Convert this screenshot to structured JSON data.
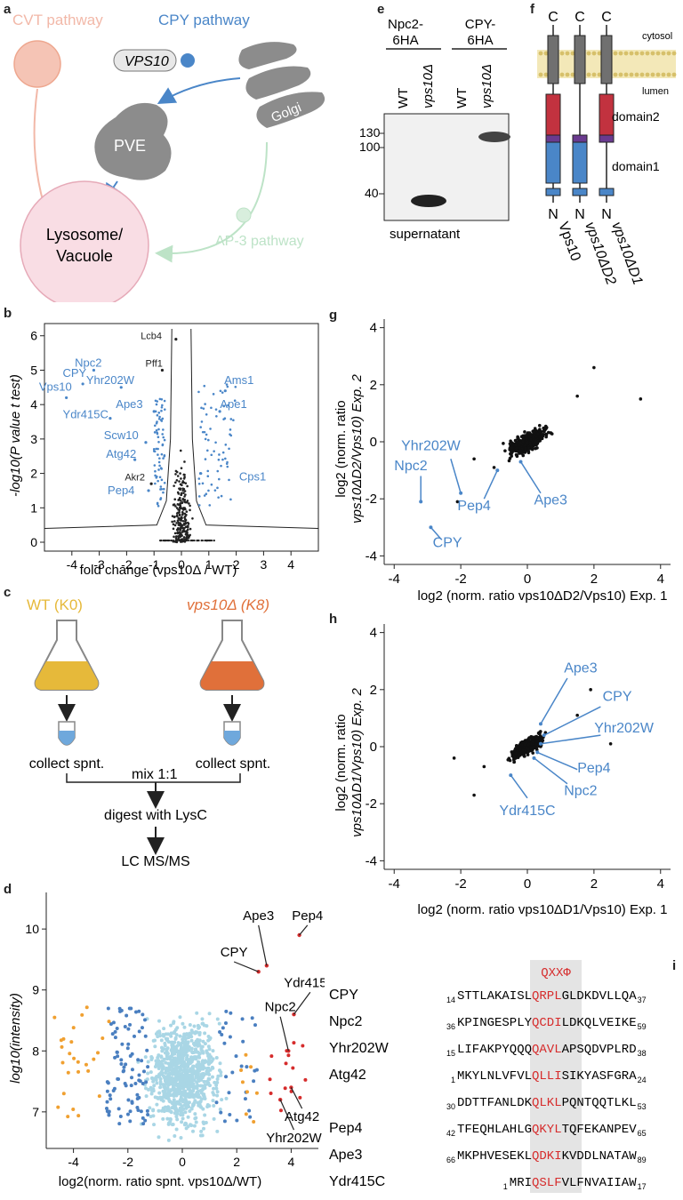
{
  "panel_labels": {
    "a": "a",
    "b": "b",
    "c": "c",
    "d": "d",
    "e": "e",
    "f": "f",
    "g": "g",
    "h": "h",
    "i": "i"
  },
  "panel_a": {
    "cvt_label": "CVT pathway",
    "cpy_label": "CPY pathway",
    "vps10_label": "VPS10",
    "golgi_label": "Golgi",
    "pve_label": "PVE",
    "ap3_label": "AP-3 pathway",
    "lysosome_label_1": "Lysosome/",
    "lysosome_label_2": "Vacuole",
    "colors": {
      "cvt": "#f2b8a8",
      "cpy": "#4a86c8",
      "ap3": "#bde3c7",
      "lysosome_fill": "#f9dde4",
      "lysosome_stroke": "#e6aab8",
      "organelle": "#8c8c8c"
    }
  },
  "panel_b": {
    "ylabel": "-log10(P value t test)",
    "xlabel": "fold change (vps10Δ / WT)",
    "chart_data": {
      "type": "scatter",
      "title": "",
      "xlim": [
        -5,
        5
      ],
      "ylim": [
        0,
        6.2
      ],
      "xticks": [
        "-4",
        "-3",
        "-2",
        "-1",
        "0",
        "1",
        "2",
        "3",
        "4"
      ],
      "yticks": [
        "0",
        "1",
        "2",
        "3",
        "4",
        "5",
        "6"
      ],
      "labeled_points": [
        {
          "name": "Lcb4",
          "x": -0.2,
          "y": 5.9,
          "color": "black"
        },
        {
          "name": "Npc2",
          "x": -3.2,
          "y": 5.0,
          "color": "blue"
        },
        {
          "name": "CPY",
          "x": -3.6,
          "y": 4.6,
          "color": "blue"
        },
        {
          "name": "Pff1",
          "x": -0.7,
          "y": 5.0,
          "color": "black"
        },
        {
          "name": "Yhr202W",
          "x": -2.2,
          "y": 4.5,
          "color": "blue"
        },
        {
          "name": "Vps10",
          "x": -4.2,
          "y": 4.2,
          "color": "blue"
        },
        {
          "name": "Ams1",
          "x": 1.6,
          "y": 4.4,
          "color": "blue"
        },
        {
          "name": "Ape3",
          "x": -1.0,
          "y": 3.8,
          "color": "blue"
        },
        {
          "name": "Ape1",
          "x": 1.4,
          "y": 3.8,
          "color": "blue"
        },
        {
          "name": "Ydr415C",
          "x": -2.6,
          "y": 3.6,
          "color": "blue"
        },
        {
          "name": "Scw10",
          "x": -1.3,
          "y": 2.9,
          "color": "blue"
        },
        {
          "name": "Atg42",
          "x": -1.7,
          "y": 2.4,
          "color": "blue"
        },
        {
          "name": "Cps1",
          "x": 0.7,
          "y": 2.0,
          "color": "blue"
        },
        {
          "name": "Akr2",
          "x": -1.1,
          "y": 1.7,
          "color": "black"
        },
        {
          "name": "Pep4",
          "x": -1.2,
          "y": 1.5,
          "color": "blue"
        }
      ]
    }
  },
  "panel_c": {
    "wt_label": "WT (K0)",
    "mut_label": "vps10Δ (K8)",
    "collect_left": "collect spnt.",
    "collect_right": "collect spnt.",
    "mix_label": "mix 1:1",
    "digest_label": "digest with LysC",
    "lcms_label": "LC MS/MS",
    "colors": {
      "wt": "#e6b93a",
      "mut": "#e0703a",
      "tube": "#6fa8dc"
    }
  },
  "panel_d": {
    "ylabel": "log10(intensity)",
    "xlabel": "log2(norm. ratio spnt. vps10Δ/WT)",
    "chart_data": {
      "type": "scatter",
      "xlim": [
        -5,
        5
      ],
      "ylim": [
        6.4,
        10.6
      ],
      "xticks": [
        "-4",
        "-2",
        "0",
        "2",
        "4"
      ],
      "yticks": [
        "7",
        "8",
        "9",
        "10"
      ],
      "labeled_points": [
        {
          "name": "Ape3",
          "x": 3.1,
          "y": 9.4
        },
        {
          "name": "Pep4",
          "x": 4.3,
          "y": 9.9
        },
        {
          "name": "CPY",
          "x": 2.8,
          "y": 9.3
        },
        {
          "name": "Ydr415C",
          "x": 4.1,
          "y": 8.6
        },
        {
          "name": "Npc2",
          "x": 3.9,
          "y": 8.0
        },
        {
          "name": "Atg42",
          "x": 4.0,
          "y": 7.4
        },
        {
          "name": "Yhr202W",
          "x": 3.6,
          "y": 7.2
        }
      ],
      "series_colors": {
        "bulk": "#a9d6e5",
        "moderate": "#4a7fc0",
        "outlier": "#f0a030",
        "hit": "#d62c2c"
      }
    }
  },
  "panel_e": {
    "header_left_1": "Npc2-",
    "header_left_2": "6HA",
    "header_right_1": "CPY-",
    "header_right_2": "6HA",
    "lanes": [
      "WT",
      "vps10Δ",
      "WT",
      "vps10Δ"
    ],
    "markers": [
      "130",
      "100",
      "40"
    ],
    "footer": "supernatant"
  },
  "panel_f": {
    "c_labels": [
      "C",
      "C",
      "C"
    ],
    "n_labels": [
      "N",
      "N",
      "N"
    ],
    "cytosol": "cytosol",
    "lumen": "lumen",
    "domain2": "domain2",
    "domain1": "domain1",
    "constructs": [
      "Vps10",
      "vps10ΔD2",
      "vps10ΔD1"
    ],
    "colors": {
      "tm": "#707070",
      "domain2": "#c2323f",
      "domain1": "#4a86c8",
      "linker": "#6a3a8f",
      "membrane": "#e8d78a"
    }
  },
  "panel_g": {
    "xlabel": "log2 (norm. ratio vps10ΔD2/Vps10) Exp. 1",
    "ylabel_1": "log2 (norm. ratio",
    "ylabel_2": "vps10ΔD2/Vps10) Exp. 2",
    "chart_data": {
      "type": "scatter",
      "xlim": [
        -4.3,
        4.3
      ],
      "ylim": [
        -4.3,
        4.3
      ],
      "xticks": [
        "-4",
        "-2",
        "0",
        "2",
        "4"
      ],
      "yticks": [
        "-4",
        "-2",
        "0",
        "2",
        "4"
      ],
      "labeled_points": [
        {
          "name": "Yhr202W",
          "x": -2.0,
          "y": -1.8
        },
        {
          "name": "Npc2",
          "x": -3.2,
          "y": -2.1
        },
        {
          "name": "CPY",
          "x": -2.9,
          "y": -3.0
        },
        {
          "name": "Pep4",
          "x": -0.9,
          "y": -1.0
        },
        {
          "name": "Ape3",
          "x": -0.2,
          "y": -0.7
        }
      ]
    }
  },
  "panel_h": {
    "xlabel": "log2 (norm. ratio vps10ΔD1/Vps10) Exp. 1",
    "ylabel_1": "log2 (norm. ratio",
    "ylabel_2": "vps10ΔD1/Vps10) Exp. 2",
    "chart_data": {
      "type": "scatter",
      "xlim": [
        -4.3,
        4.3
      ],
      "ylim": [
        -4.3,
        4.3
      ],
      "xticks": [
        "-4",
        "-2",
        "0",
        "2",
        "4"
      ],
      "yticks": [
        "-4",
        "-2",
        "0",
        "2",
        "4"
      ],
      "labeled_points": [
        {
          "name": "Ape3",
          "x": 0.4,
          "y": 0.8
        },
        {
          "name": "CPY",
          "x": 0.5,
          "y": 0.4
        },
        {
          "name": "Yhr202W",
          "x": 0.4,
          "y": 0.1
        },
        {
          "name": "Pep4",
          "x": 0.3,
          "y": -0.2
        },
        {
          "name": "Npc2",
          "x": 0.2,
          "y": -0.4
        },
        {
          "name": "Ydr415C",
          "x": -0.5,
          "y": -1.0
        }
      ]
    }
  },
  "panel_i": {
    "motif": "QXXΦ",
    "rows": [
      {
        "name": "CPY",
        "start": "14",
        "pre": "STTLAKAISL",
        "motif": "QRPL",
        "post": "GLDKDVLLQA",
        "end": "37"
      },
      {
        "name": "Npc2",
        "start": "36",
        "pre": "KPINGESPLY",
        "motif": "QCDI",
        "post": "LDKQLVEIKE",
        "end": "59"
      },
      {
        "name": "Yhr202W",
        "start": "15",
        "pre": "LIFAKPYQQQ",
        "motif": "QAVL",
        "post": "APSQDVPLRD",
        "end": "38"
      },
      {
        "name": "Atg42",
        "start": "1",
        "pre": "MKYLNLVFVL",
        "motif": "QLLI",
        "post": "SIKYASFGRA",
        "end": "24"
      },
      {
        "name": "",
        "start": "30",
        "pre": "DDTTFANLDK",
        "motif": "QLKL",
        "post": "PQNTQQTLKL",
        "end": "53"
      },
      {
        "name": "Pep4",
        "start": "42",
        "pre": "TFEQHLAHLG",
        "motif": "QKYL",
        "post": "TQFEKANPEV",
        "end": "65"
      },
      {
        "name": "Ape3",
        "start": "66",
        "pre": "MKPHVESEKL",
        "motif": "QDKI",
        "post": "KVDDLNATAW",
        "end": "89"
      },
      {
        "name": "Ydr415C",
        "start": "1",
        "pre": "MRI",
        "motif": "QSLF",
        "post": "VLFNVAIIAW",
        "end": "17"
      }
    ]
  }
}
